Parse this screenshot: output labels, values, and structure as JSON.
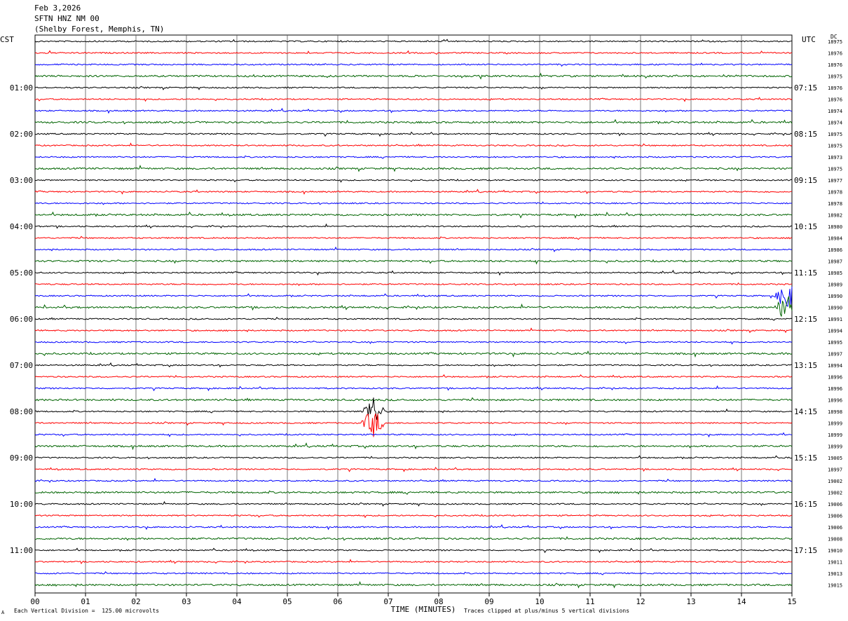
{
  "header": {
    "date": "Feb 3,2026",
    "station": "SFTN HNZ NM 00",
    "location": "(Shelby Forest, Memphis, TN)"
  },
  "left_tz": "CST",
  "right_tz": "UTC",
  "dc_label": "DC",
  "footer": {
    "scale_note": "Each Vertical Division =  125.00 microvolts",
    "clip_note": "Traces clipped at plus/minus 5 vertical divisions",
    "mark": "A"
  },
  "chart_data": {
    "type": "line",
    "title": "Feb 3,2026 SFTN HNZ NM 00 (Shelby Forest, Memphis, TN)",
    "xlabel": "TIME (MINUTES)",
    "xlim": [
      0,
      15
    ],
    "x_ticks": [
      "00",
      "01",
      "02",
      "03",
      "04",
      "05",
      "06",
      "07",
      "08",
      "09",
      "10",
      "11",
      "12",
      "13",
      "14",
      "15"
    ],
    "left_ticks": [
      "01:00",
      "02:00",
      "03:00",
      "04:00",
      "05:00",
      "06:00",
      "07:00",
      "08:00",
      "09:00",
      "10:00",
      "11:00"
    ],
    "right_ticks": [
      "07:15",
      "08:15",
      "09:15",
      "10:15",
      "11:15",
      "12:15",
      "13:15",
      "14:15",
      "15:15",
      "16:15",
      "17:15"
    ],
    "trace_colors": [
      "#000000",
      "#ff0000",
      "#0000ff",
      "#006400"
    ],
    "dc_offsets": [
      "18975",
      "18976",
      "18976",
      "18975",
      "18976",
      "18976",
      "18974",
      "18974",
      "18975",
      "18975",
      "18973",
      "18975",
      "18977",
      "18978",
      "18978",
      "18982",
      "18980",
      "18984",
      "18986",
      "18987",
      "18985",
      "18989",
      "18990",
      "18990",
      "18991",
      "18994",
      "18995",
      "18997",
      "18994",
      "18996",
      "18996",
      "18996",
      "18998",
      "18999",
      "18999",
      "18999",
      "19005",
      "18997",
      "19002",
      "19002",
      "19006",
      "19006",
      "19006",
      "19008",
      "19010",
      "19011",
      "19013",
      "19015"
    ],
    "events": [
      {
        "trace": 32,
        "minute": 6.7,
        "amplitude": "large",
        "description": "clipped burst"
      },
      {
        "trace": 33,
        "minute": 6.7,
        "amplitude": "large",
        "description": "burst continuation"
      },
      {
        "trace": 22,
        "minute": 14.9,
        "amplitude": "large",
        "description": "clipped burst"
      },
      {
        "trace": 23,
        "minute": 14.9,
        "amplitude": "large",
        "description": "burst continuation"
      }
    ]
  }
}
